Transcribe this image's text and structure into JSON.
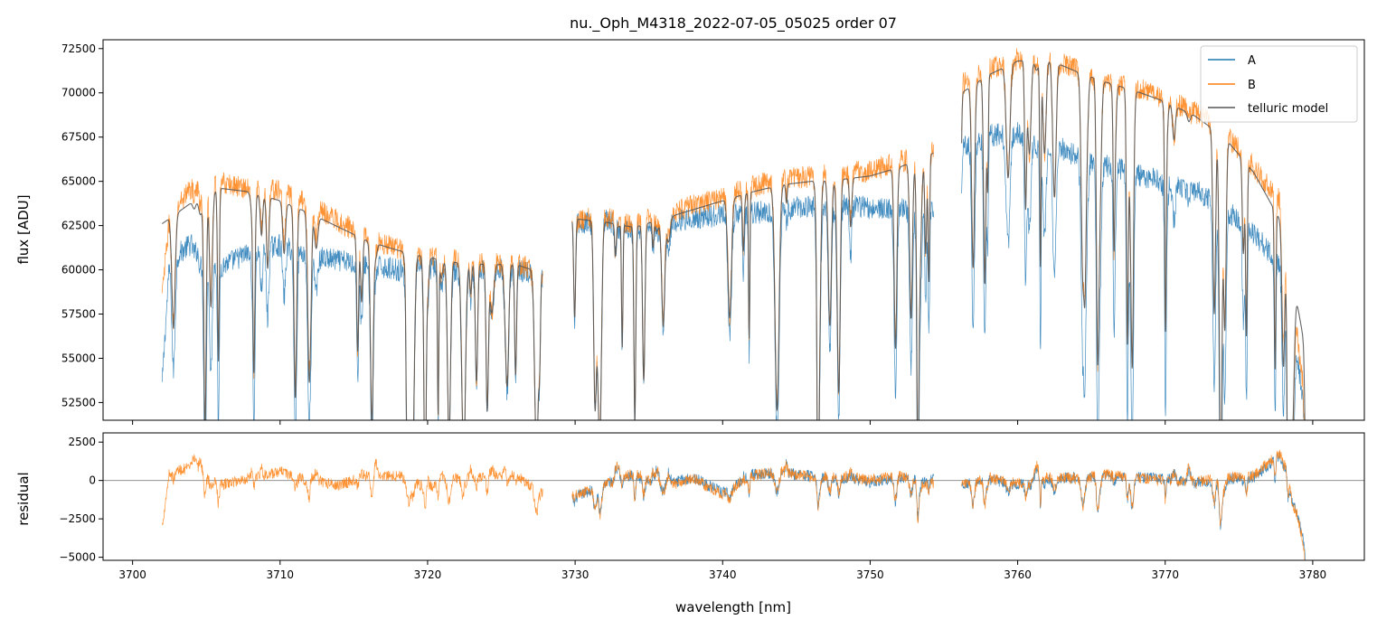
{
  "chart_data": {
    "type": "line",
    "title": "nu._Oph_M4318_2022-07-05_05025  order 07",
    "xlabel": "wavelength [nm]",
    "xlim": [
      3698,
      3783.5
    ],
    "x_ticks": [
      3700,
      3710,
      3720,
      3730,
      3740,
      3750,
      3760,
      3770,
      3780
    ],
    "x_tick_labels": [
      "3700",
      "3710",
      "3720",
      "3730",
      "3740",
      "3750",
      "3760",
      "3770",
      "3780"
    ],
    "colors": {
      "A": "#1f77b4",
      "B": "#ff7f0e",
      "telluric": "#555555",
      "zero_line": "#808080"
    },
    "panels": [
      {
        "name": "flux",
        "ylabel": "flux [ADU]",
        "ylim": [
          51500,
          73000
        ],
        "y_ticks": [
          52500,
          55000,
          57500,
          60000,
          62500,
          65000,
          67500,
          70000,
          72500
        ],
        "y_tick_labels": [
          "52500",
          "55000",
          "57500",
          "60000",
          "62500",
          "65000",
          "67500",
          "70000",
          "72500"
        ],
        "legend_position": "upper-right",
        "series": [
          {
            "name": "A",
            "segments": [
              {
                "x": [
                  3702.0,
                  3702.5,
                  3704.0,
                  3706.0,
                  3708.0,
                  3710.0,
                  3712.0,
                  3714.0,
                  3716.0,
                  3718.0,
                  3720.0,
                  3722.0,
                  3724.0,
                  3726.0,
                  3727.8
                ],
                "y": [
                  53500,
                  60500,
                  61500,
                  60200,
                  61000,
                  61400,
                  60800,
                  60500,
                  60300,
                  60000,
                  60200,
                  59900,
                  60100,
                  60000,
                  59600
                ]
              },
              {
                "x": [
                  3729.8,
                  3732.0,
                  3734.0,
                  3736.0,
                  3738.0,
                  3740.0,
                  3742.0,
                  3744.0,
                  3746.0,
                  3748.0,
                  3750.0,
                  3752.0,
                  3754.3
                ],
                "y": [
                  62600,
                  62800,
                  62200,
                  62700,
                  62900,
                  63100,
                  63200,
                  63400,
                  63600,
                  63700,
                  63500,
                  63400,
                  63600
                ]
              },
              {
                "x": [
                  3756.2,
                  3758.0,
                  3760.0,
                  3762.0,
                  3764.0,
                  3766.0,
                  3768.0,
                  3770.0,
                  3772.0,
                  3774.0,
                  3776.0,
                  3778.0,
                  3779.5
                ],
                "y": [
                  67000,
                  67600,
                  67700,
                  67300,
                  66400,
                  65900,
                  65400,
                  64900,
                  64500,
                  63500,
                  62000,
                  60200,
                  52000
                ]
              }
            ]
          },
          {
            "name": "B",
            "segments": [
              {
                "x": [
                  3702.0,
                  3702.5,
                  3704.0,
                  3706.0,
                  3708.0,
                  3710.0,
                  3712.0,
                  3714.0,
                  3716.0,
                  3718.0,
                  3720.0,
                  3722.0,
                  3724.0,
                  3726.0,
                  3727.8
                ],
                "y": [
                  58500,
                  63000,
                  64700,
                  64900,
                  64600,
                  64500,
                  63800,
                  62700,
                  61800,
                  61200,
                  60800,
                  60500,
                  60400,
                  60400,
                  59700
                ]
              },
              {
                "x": [
                  3729.8,
                  3732.0,
                  3734.0,
                  3736.0,
                  3738.0,
                  3740.0,
                  3742.0,
                  3744.0,
                  3746.0,
                  3748.0,
                  3750.0,
                  3752.0,
                  3754.3
                ],
                "y": [
                  62800,
                  63000,
                  62600,
                  63100,
                  63600,
                  64100,
                  64700,
                  65100,
                  65300,
                  65400,
                  65600,
                  66100,
                  66700
                ]
              },
              {
                "x": [
                  3756.2,
                  3758.0,
                  3760.0,
                  3762.0,
                  3764.0,
                  3766.0,
                  3768.0,
                  3770.0,
                  3772.0,
                  3774.0,
                  3776.0,
                  3778.0,
                  3779.5
                ],
                "y": [
                  70500,
                  71300,
                  71900,
                  72000,
                  71300,
                  70700,
                  70300,
                  69700,
                  68900,
                  67800,
                  65800,
                  63700,
                  52200
                ]
              }
            ]
          },
          {
            "name": "telluric model",
            "segments": [
              {
                "x": [
                  3702.0,
                  3704.0,
                  3706.0,
                  3708.0,
                  3710.0,
                  3712.0,
                  3714.0,
                  3716.0,
                  3718.0,
                  3720.0,
                  3722.0,
                  3724.0,
                  3726.0,
                  3727.8
                ],
                "y": [
                  62600,
                  63800,
                  64600,
                  64400,
                  63900,
                  63200,
                  62400,
                  61600,
                  61100,
                  60700,
                  60400,
                  60300,
                  60300,
                  59800
                ]
              },
              {
                "x": [
                  3729.8,
                  3732.0,
                  3734.0,
                  3736.0,
                  3738.0,
                  3740.0,
                  3742.0,
                  3744.0,
                  3746.0,
                  3748.0,
                  3750.0,
                  3752.0,
                  3754.3
                ],
                "y": [
                  62900,
                  62700,
                  62400,
                  62900,
                  63400,
                  63900,
                  64400,
                  64800,
                  65000,
                  65100,
                  65300,
                  65800,
                  66600
                ]
              },
              {
                "x": [
                  3756.2,
                  3758.0,
                  3760.0,
                  3762.0,
                  3764.0,
                  3766.0,
                  3768.0,
                  3770.0,
                  3772.0,
                  3774.0,
                  3776.0,
                  3778.0,
                  3779.5
                ],
                "y": [
                  70000,
                  71000,
                  71800,
                  71900,
                  71200,
                  70600,
                  70100,
                  69500,
                  68700,
                  67500,
                  65500,
                  62500,
                  55500
                ]
              }
            ]
          }
        ]
      },
      {
        "name": "residual",
        "ylabel": "residual",
        "ylim": [
          -5200,
          3100
        ],
        "y_ticks": [
          -5000,
          -2500,
          0,
          2500
        ],
        "y_tick_labels": [
          "−5000",
          "−2500",
          "0",
          "2500"
        ],
        "zero_line": 0,
        "series": [
          {
            "name": "A",
            "segments": [
              {
                "x": [
                  3729.8,
                  3732.0,
                  3734.0,
                  3736.0,
                  3738.0,
                  3740.0,
                  3742.0,
                  3744.0,
                  3746.0,
                  3748.0,
                  3750.0,
                  3752.0,
                  3754.3
                ],
                "y": [
                  -1200,
                  -200,
                  300,
                  -300,
                  200,
                  -800,
                  400,
                  500,
                  300,
                  200,
                  -100,
                  200,
                  100
                ]
              },
              {
                "x": [
                  3756.2,
                  3758.0,
                  3760.0,
                  3762.0,
                  3764.0,
                  3766.0,
                  3768.0,
                  3770.0,
                  3772.0,
                  3774.0,
                  3776.0,
                  3778.0,
                  3779.5
                ],
                "y": [
                  -200,
                  100,
                  -300,
                  100,
                  200,
                  300,
                  200,
                  100,
                  -200,
                  100,
                  200,
                  1800,
                  -4500
                ]
              }
            ]
          },
          {
            "name": "B",
            "segments": [
              {
                "x": [
                  3702.0,
                  3702.5,
                  3704.0,
                  3706.0,
                  3708.0,
                  3710.0,
                  3712.0,
                  3714.0,
                  3716.0,
                  3718.0,
                  3720.0,
                  3722.0,
                  3724.0,
                  3726.0,
                  3727.8
                ],
                "y": [
                  -3000,
                  600,
                  800,
                  -300,
                  200,
                  500,
                  0,
                  -300,
                  400,
                  300,
                  -500,
                  200,
                  300,
                  400,
                  -900
                ]
              },
              {
                "x": [
                  3729.8,
                  3732.0,
                  3734.0,
                  3736.0,
                  3738.0,
                  3740.0,
                  3742.0,
                  3744.0,
                  3746.0,
                  3748.0,
                  3750.0,
                  3752.0,
                  3754.3
                ],
                "y": [
                  -1000,
                  -300,
                  500,
                  -400,
                  100,
                  -900,
                  300,
                  600,
                  200,
                  300,
                  0,
                  300,
                  -200
                ]
              },
              {
                "x": [
                  3756.2,
                  3758.0,
                  3760.0,
                  3762.0,
                  3764.0,
                  3766.0,
                  3768.0,
                  3770.0,
                  3772.0,
                  3774.0,
                  3776.0,
                  3778.0,
                  3779.5
                ],
                "y": [
                  -300,
                  200,
                  -200,
                  300,
                  100,
                  400,
                  200,
                  0,
                  -100,
                  200,
                  300,
                  2000,
                  -4800
                ]
              }
            ]
          }
        ]
      }
    ]
  }
}
